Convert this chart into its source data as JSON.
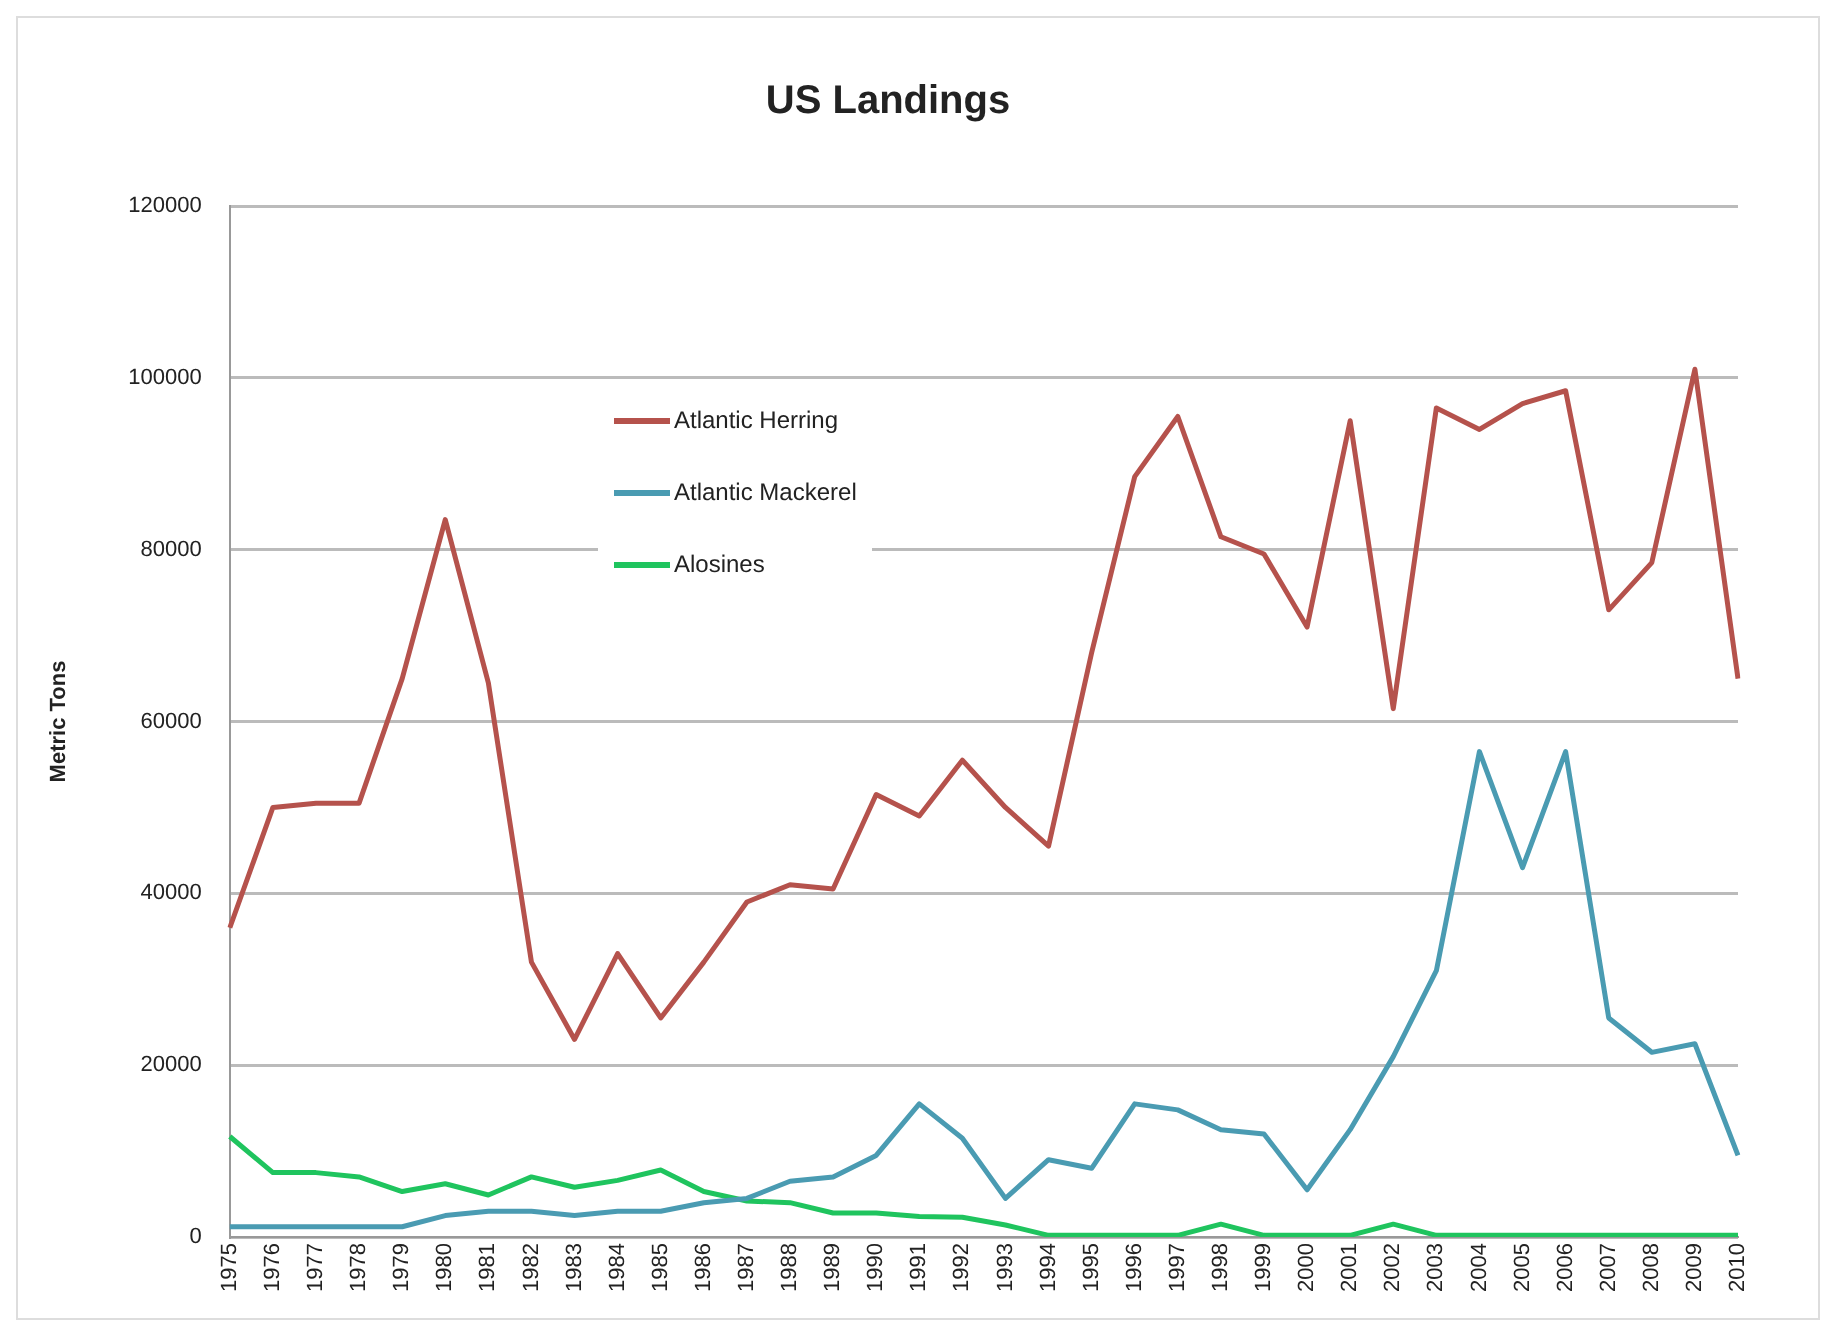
{
  "chart_data": {
    "type": "line",
    "title": "US Landings",
    "ylabel": "Metric Tons",
    "categories": [
      "1975",
      "1976",
      "1977",
      "1978",
      "1979",
      "1980",
      "1981",
      "1982",
      "1983",
      "1984",
      "1985",
      "1986",
      "1987",
      "1988",
      "1989",
      "1990",
      "1991",
      "1992",
      "1993",
      "1994",
      "1995",
      "1996",
      "1997",
      "1998",
      "1999",
      "2000",
      "2001",
      "2002",
      "2003",
      "2004",
      "2005",
      "2006",
      "2007",
      "2008",
      "2009",
      "2010"
    ],
    "series": [
      {
        "name": "Atlantic Herring",
        "color": "#b5524c",
        "values": [
          36000,
          50000,
          50500,
          50500,
          65000,
          83500,
          64500,
          32000,
          23000,
          33000,
          25500,
          32000,
          39000,
          41000,
          40500,
          51500,
          49000,
          55500,
          50000,
          45500,
          68000,
          88500,
          95500,
          81500,
          79500,
          71000,
          95000,
          61500,
          96500,
          94000,
          97000,
          98500,
          73000,
          78500,
          101000,
          65000
        ]
      },
      {
        "name": "Atlantic Mackerel",
        "color": "#4a9bb2",
        "values": [
          1200,
          1200,
          1200,
          1200,
          1200,
          2500,
          3000,
          3000,
          2500,
          3000,
          3000,
          4000,
          4500,
          6500,
          7000,
          9500,
          15500,
          11500,
          4500,
          9000,
          8000,
          15500,
          14800,
          12500,
          12000,
          5500,
          12500,
          21000,
          31000,
          56500,
          43000,
          56500,
          25500,
          21500,
          22500,
          9500
        ]
      },
      {
        "name": "Alosines",
        "color": "#1fc45e",
        "values": [
          11700,
          7500,
          7500,
          7000,
          5300,
          6200,
          4900,
          7000,
          5800,
          6600,
          7800,
          5300,
          4200,
          4000,
          2800,
          2800,
          2400,
          2300,
          1400,
          200,
          200,
          200,
          200,
          1500,
          200,
          200,
          200,
          1500,
          200,
          200,
          200,
          200,
          200,
          200,
          200,
          200
        ]
      }
    ],
    "ylim": [
      0,
      120000
    ],
    "yticks": [
      0,
      20000,
      40000,
      60000,
      80000,
      100000,
      120000
    ],
    "grid": "y",
    "legend": "top left",
    "marker": "none",
    "line_style": "solid"
  }
}
